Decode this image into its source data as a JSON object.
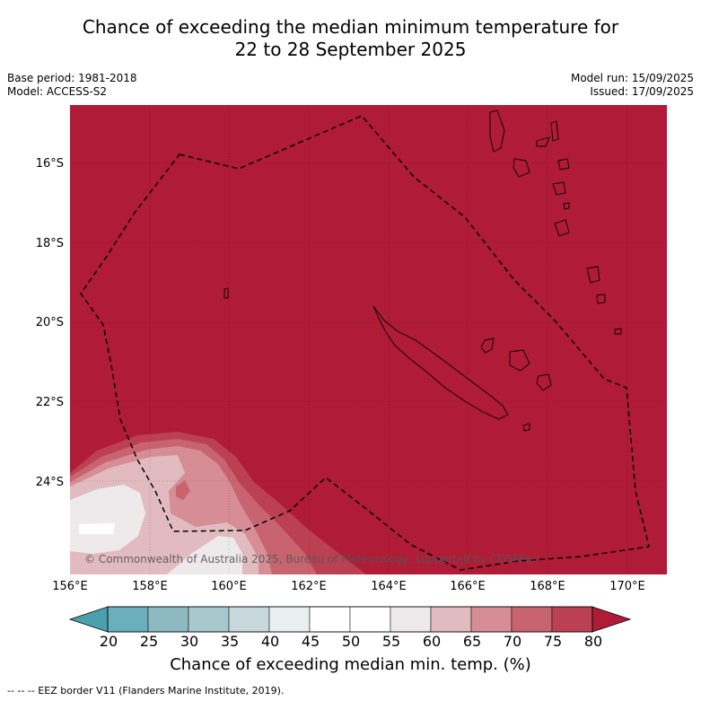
{
  "title_line1": "Chance of exceeding the median minimum temperature for",
  "title_line2": "22 to 28 September 2025",
  "base_period": "Base period: 1981-2018",
  "model": "Model: ACCESS-S2",
  "model_run": "Model run: 15/09/2025",
  "issued": "Issued: 17/09/2025",
  "lat_labels": [
    "16°S",
    "18°S",
    "20°S",
    "22°S",
    "24°S"
  ],
  "lon_labels": [
    "156°E",
    "158°E",
    "160°E",
    "162°E",
    "164°E",
    "166°E",
    "168°E",
    "170°E"
  ],
  "copyright": "© Commonwealth of Australia 2025, Bureau of Meteorology, supported by COSPPac",
  "colorbar": {
    "ticks": [
      "20",
      "25",
      "30",
      "35",
      "40",
      "45",
      "50",
      "55",
      "60",
      "65",
      "70",
      "75",
      "80"
    ],
    "label": "Chance of exceeding median min. temp. (%)",
    "colors": [
      "#4aa1ad",
      "#6aafbb",
      "#8db9c3",
      "#a9c8cd",
      "#c7d9dc",
      "#e8eff1",
      "#ffffff",
      "#ffffff",
      "#eeeaeb",
      "#e2bbc0",
      "#d68d95",
      "#c7646f",
      "#bb4152",
      "#b01b37"
    ]
  },
  "footer": "--  --  -- EEZ border V11 (Flanders Marine Institute, 2019).",
  "colors": {
    "dominant_fill": "#b01b37"
  }
}
